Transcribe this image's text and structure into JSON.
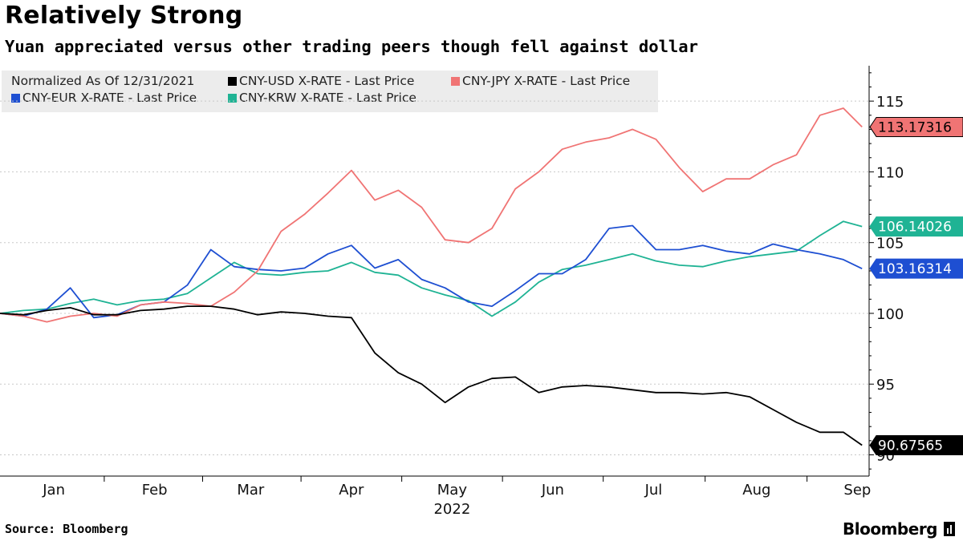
{
  "header": {
    "title": "Relatively Strong",
    "subtitle": "Yuan appreciated versus other trading peers though fell against dollar"
  },
  "legend": {
    "note": "Normalized As Of 12/31/2021"
  },
  "footer": {
    "source": "Source: Bloomberg",
    "brand": "Bloomberg"
  },
  "chart_data": {
    "type": "line",
    "x_unit": "2022 week index (0 = 2021-12-31)",
    "xticks": [
      {
        "label": "Jan",
        "x": 2.3
      },
      {
        "label": "Feb",
        "x": 6.6
      },
      {
        "label": "Mar",
        "x": 10.7
      },
      {
        "label": "Apr",
        "x": 15.0
      },
      {
        "label": "May",
        "x": 19.3
      },
      {
        "label": "Jun",
        "x": 23.6
      },
      {
        "label": "Jul",
        "x": 27.9
      },
      {
        "label": "Aug",
        "x": 32.3
      },
      {
        "label": "Sep",
        "x": 36.6
      }
    ],
    "year_label": "2022",
    "ylim": [
      88.5,
      117.5
    ],
    "yticks": [
      90,
      95,
      100,
      105,
      110,
      115
    ],
    "grid": "horizontal dashed",
    "legend_position": "top-left",
    "series": [
      {
        "name": "CNY-USD X-RATE - Last Price",
        "color": "#000000",
        "last": "90.67565",
        "x": [
          0,
          1,
          2,
          3,
          4,
          5,
          6,
          7,
          8,
          9,
          10,
          11,
          12,
          13,
          14,
          15,
          16,
          17,
          18,
          19,
          20,
          21,
          22,
          23,
          24,
          25,
          26,
          27,
          28,
          29,
          30,
          31,
          32,
          33,
          34,
          35,
          36,
          36.8
        ],
        "y": [
          100.0,
          99.9,
          100.2,
          100.4,
          99.9,
          99.9,
          100.2,
          100.3,
          100.5,
          100.5,
          100.3,
          99.9,
          100.1,
          100.0,
          99.8,
          99.7,
          97.2,
          95.8,
          95.0,
          93.7,
          94.8,
          95.4,
          95.5,
          94.4,
          94.8,
          94.9,
          94.8,
          94.6,
          94.4,
          94.4,
          94.3,
          94.4,
          94.1,
          93.2,
          92.3,
          91.6,
          91.6,
          90.68
        ]
      },
      {
        "name": "CNY-JPY X-RATE - Last Price",
        "color": "#f07474",
        "last": "113.17316",
        "x": [
          0,
          1,
          2,
          3,
          4,
          5,
          6,
          7,
          8,
          9,
          10,
          11,
          12,
          13,
          14,
          15,
          16,
          17,
          18,
          19,
          20,
          21,
          22,
          23,
          24,
          25,
          26,
          27,
          28,
          29,
          30,
          31,
          32,
          33,
          34,
          35,
          36,
          36.8
        ],
        "y": [
          100.0,
          99.8,
          99.4,
          99.8,
          100.0,
          99.8,
          100.6,
          100.8,
          100.7,
          100.5,
          101.5,
          103.0,
          105.8,
          107.0,
          108.5,
          110.1,
          108.0,
          108.7,
          107.5,
          105.2,
          105.0,
          106.0,
          108.8,
          110.0,
          111.6,
          112.1,
          112.4,
          113.0,
          112.3,
          110.3,
          108.6,
          109.5,
          109.5,
          110.5,
          111.2,
          114.0,
          114.5,
          113.17
        ]
      },
      {
        "name": "CNY-EUR X-RATE - Last Price",
        "color": "#1e4fd2",
        "last": "103.16314",
        "x": [
          0,
          1,
          2,
          3,
          4,
          5,
          6,
          7,
          8,
          9,
          10,
          11,
          12,
          13,
          14,
          15,
          16,
          17,
          18,
          19,
          20,
          21,
          22,
          23,
          24,
          25,
          26,
          27,
          28,
          29,
          30,
          31,
          32,
          33,
          34,
          35,
          36,
          36.8
        ],
        "y": [
          100.0,
          99.8,
          100.3,
          101.8,
          99.7,
          99.9,
          100.6,
          100.8,
          102.0,
          104.5,
          103.3,
          103.1,
          103.0,
          103.2,
          104.2,
          104.8,
          103.2,
          103.8,
          102.4,
          101.8,
          100.8,
          100.5,
          101.6,
          102.8,
          102.8,
          103.8,
          106.0,
          106.2,
          104.5,
          104.5,
          104.8,
          104.4,
          104.2,
          104.9,
          104.5,
          104.2,
          103.8,
          103.16
        ]
      },
      {
        "name": "CNY-KRW X-RATE - Last Price",
        "color": "#1fb394",
        "last": "106.14026",
        "x": [
          0,
          1,
          2,
          3,
          4,
          5,
          6,
          7,
          8,
          9,
          10,
          11,
          12,
          13,
          14,
          15,
          16,
          17,
          18,
          19,
          20,
          21,
          22,
          23,
          24,
          25,
          26,
          27,
          28,
          29,
          30,
          31,
          32,
          33,
          34,
          35,
          36,
          36.8
        ],
        "y": [
          100.0,
          100.2,
          100.3,
          100.7,
          101.0,
          100.6,
          100.9,
          101.0,
          101.4,
          102.5,
          103.6,
          102.8,
          102.7,
          102.9,
          103.0,
          103.6,
          102.9,
          102.7,
          101.8,
          101.3,
          100.9,
          99.8,
          100.8,
          102.2,
          103.1,
          103.4,
          103.8,
          104.2,
          103.7,
          103.4,
          103.3,
          103.7,
          104.0,
          104.2,
          104.4,
          105.5,
          106.5,
          106.14
        ]
      }
    ]
  }
}
